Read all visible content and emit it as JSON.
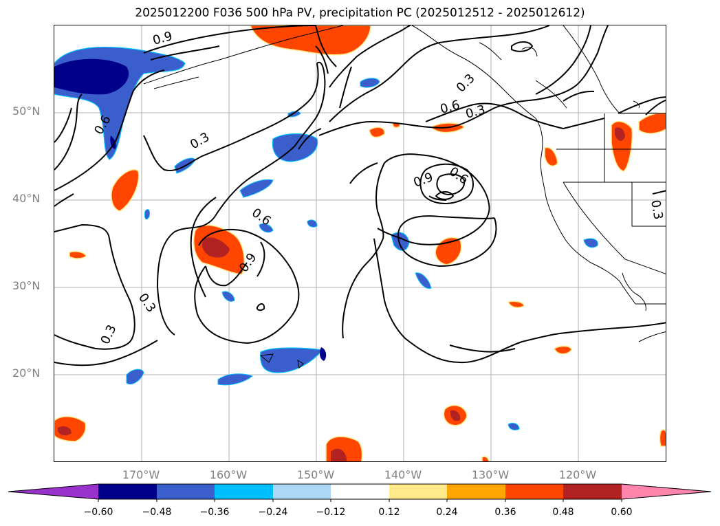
{
  "title": "2025012200 F036 500 hPa PV, precipitation PC (2025012512 - 2025012612)",
  "map": {
    "lat_labels": [
      "50°N",
      "40°N",
      "30°N",
      "20°N"
    ],
    "lon_labels": [
      "170°W",
      "160°W",
      "150°W",
      "140°W",
      "130°W",
      "120°W"
    ],
    "contour_labels": [
      "0.9",
      "0.6",
      "0.3",
      "0.6",
      "0.6",
      "0.9",
      "0.9",
      "0.6",
      "0.3",
      "0.3",
      "0.3",
      "0.3",
      "0.3"
    ]
  },
  "colorbar": {
    "ticks": [
      "−0.60",
      "−0.48",
      "−0.36",
      "−0.24",
      "−0.12",
      "0.12",
      "0.24",
      "0.36",
      "0.48",
      "0.60"
    ],
    "colors": [
      "#9932cc",
      "#00008b",
      "#3a5fcd",
      "#00bfff",
      "#add8f5",
      "#ffffff",
      "#ffe98a",
      "#ffa500",
      "#ff4500",
      "#b22222",
      "#ff85ac"
    ]
  },
  "colors": {
    "contour": "#000000",
    "grid": "#b0b0b0",
    "coast": "#000000"
  }
}
